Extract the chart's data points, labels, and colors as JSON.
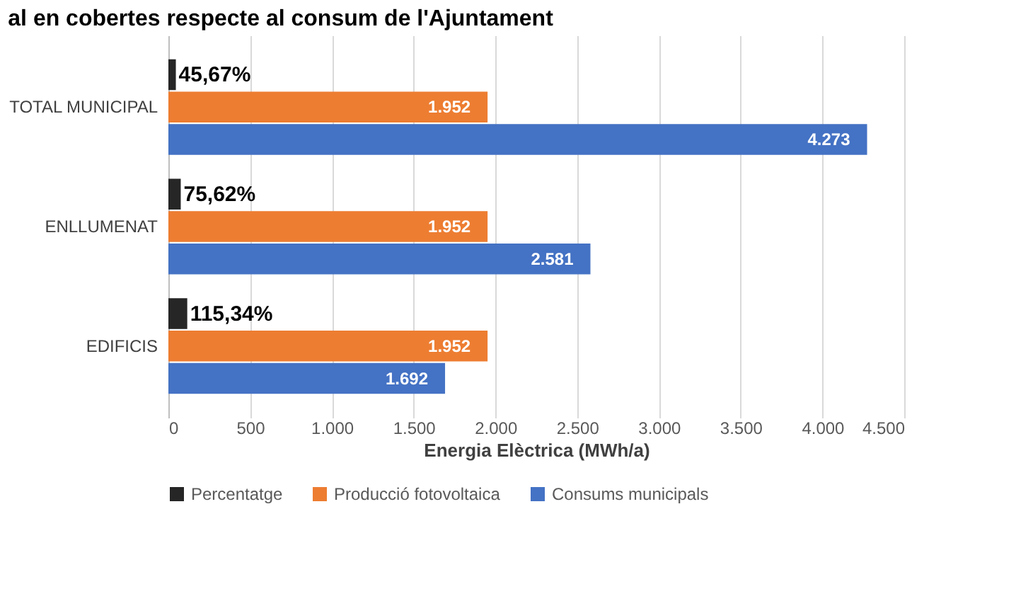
{
  "chart_data": {
    "type": "bar",
    "orientation": "horizontal",
    "title": "al en cobertes respecte al consum de l'Ajuntament",
    "xlabel": "Energia Elèctrica (MWh/a)",
    "categories": [
      "TOTAL MUNICIPAL",
      "ENLLUMENAT",
      "EDIFICIS"
    ],
    "series": [
      {
        "name": "Percentatge",
        "color": "#262626",
        "values": [
          45.67,
          75.62,
          115.34
        ],
        "value_labels": [
          "45,67%",
          "75,62%",
          "115,34%"
        ]
      },
      {
        "name": "Producció fotovoltaica",
        "color": "#ed7d31",
        "values": [
          1952,
          1952,
          1952
        ],
        "value_labels": [
          "1.952",
          "1.952",
          "1.952"
        ]
      },
      {
        "name": "Consums municipals",
        "color": "#4472c4",
        "values": [
          4273,
          2581,
          1692
        ],
        "value_labels": [
          "4.273",
          "2.581",
          "1.692"
        ]
      }
    ],
    "xlim": [
      0,
      4500
    ],
    "xticks": [
      0,
      500,
      {
        "value": 1000,
        "label": "1.000"
      },
      {
        "value": 1500,
        "label": "1.500"
      },
      {
        "value": 2000,
        "label": "2.000"
      },
      {
        "value": 2500,
        "label": "2.500"
      },
      {
        "value": 3000,
        "label": "3.000"
      },
      {
        "value": 3500,
        "label": "3.500"
      },
      {
        "value": 4000,
        "label": "4.000"
      },
      {
        "value": 4500,
        "label": "4.500"
      }
    ],
    "grid": "x",
    "legend": "bottom"
  }
}
